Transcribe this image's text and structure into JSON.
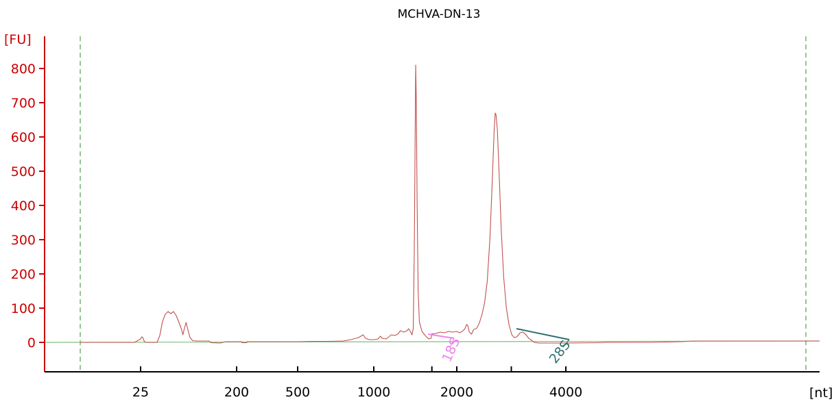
{
  "chart_data": {
    "type": "line",
    "title": "MCHVA-DN-13",
    "ylabel": "[FU]",
    "xlabel": "[nt]",
    "ylim": [
      -80,
      900
    ],
    "yticks": [
      0,
      100,
      200,
      300,
      400,
      500,
      600,
      700,
      800
    ],
    "xticks": [
      "25",
      "200",
      "500",
      "1000",
      "2000",
      "4000"
    ],
    "grid": false,
    "colors": {
      "axis_y": "#cc0000",
      "axis_x": "#000000",
      "trace": "#c0504d",
      "baseline": "#7fbf7f",
      "bounds": "#2e8b2e",
      "marker_18S": "#ee82ee",
      "marker_28S": "#2f6f6f"
    },
    "markers": [
      {
        "label": "18S"
      },
      {
        "label": "28S"
      }
    ],
    "series": [
      {
        "values": [
          [
            -24,
            0
          ],
          [
            20,
            0
          ],
          [
            25,
            10
          ],
          [
            27,
            16
          ],
          [
            29,
            14
          ],
          [
            32,
            2
          ],
          [
            35,
            0
          ],
          [
            50,
            0
          ],
          [
            55,
            0
          ],
          [
            60,
            20
          ],
          [
            65,
            62
          ],
          [
            70,
            82
          ],
          [
            75,
            90
          ],
          [
            80,
            84
          ],
          [
            85,
            90
          ],
          [
            90,
            78
          ],
          [
            95,
            58
          ],
          [
            100,
            36
          ],
          [
            102,
            22
          ],
          [
            105,
            42
          ],
          [
            108,
            58
          ],
          [
            111,
            38
          ],
          [
            115,
            14
          ],
          [
            120,
            5
          ],
          [
            128,
            4
          ],
          [
            140,
            4
          ],
          [
            150,
            4
          ],
          [
            153,
            -1
          ],
          [
            170,
            -2
          ],
          [
            180,
            2
          ],
          [
            210,
            2
          ],
          [
            225,
            2
          ],
          [
            227,
            -1
          ],
          [
            250,
            -1
          ],
          [
            252,
            2
          ],
          [
            300,
            2
          ],
          [
            400,
            2
          ],
          [
            500,
            2
          ],
          [
            600,
            3
          ],
          [
            700,
            3
          ],
          [
            800,
            4
          ],
          [
            850,
            8
          ],
          [
            900,
            14
          ],
          [
            930,
            22
          ],
          [
            945,
            12
          ],
          [
            970,
            8
          ],
          [
            1000,
            8
          ],
          [
            1050,
            10
          ],
          [
            1080,
            18
          ],
          [
            1100,
            12
          ],
          [
            1150,
            10
          ],
          [
            1180,
            16
          ],
          [
            1210,
            22
          ],
          [
            1250,
            20
          ],
          [
            1290,
            24
          ],
          [
            1320,
            34
          ],
          [
            1360,
            30
          ],
          [
            1400,
            34
          ],
          [
            1420,
            40
          ],
          [
            1440,
            32
          ],
          [
            1460,
            22
          ],
          [
            1475,
            40
          ],
          [
            1488,
            260
          ],
          [
            1498,
            600
          ],
          [
            1505,
            810
          ],
          [
            1512,
            700
          ],
          [
            1522,
            400
          ],
          [
            1535,
            150
          ],
          [
            1550,
            60
          ],
          [
            1580,
            32
          ],
          [
            1620,
            20
          ],
          [
            1660,
            10
          ],
          [
            1690,
            12
          ],
          [
            1700,
            25
          ],
          [
            1750,
            26
          ],
          [
            1800,
            30
          ],
          [
            1850,
            28
          ],
          [
            1900,
            32
          ],
          [
            1950,
            30
          ],
          [
            2000,
            32
          ],
          [
            2050,
            28
          ],
          [
            2100,
            32
          ],
          [
            2150,
            40
          ],
          [
            2180,
            52
          ],
          [
            2200,
            50
          ],
          [
            2230,
            30
          ],
          [
            2270,
            24
          ],
          [
            2310,
            38
          ],
          [
            2360,
            40
          ],
          [
            2410,
            55
          ],
          [
            2460,
            80
          ],
          [
            2510,
            115
          ],
          [
            2560,
            180
          ],
          [
            2610,
            310
          ],
          [
            2650,
            470
          ],
          [
            2685,
            620
          ],
          [
            2705,
            670
          ],
          [
            2720,
            665
          ],
          [
            2745,
            620
          ],
          [
            2775,
            500
          ],
          [
            2815,
            330
          ],
          [
            2860,
            190
          ],
          [
            2910,
            100
          ],
          [
            2960,
            50
          ],
          [
            3010,
            22
          ],
          [
            3055,
            14
          ],
          [
            3100,
            16
          ],
          [
            3160,
            28
          ],
          [
            3210,
            30
          ],
          [
            3260,
            24
          ],
          [
            3320,
            12
          ],
          [
            3380,
            5
          ],
          [
            3420,
            0
          ],
          [
            3500,
            -2
          ],
          [
            4000,
            -2
          ],
          [
            4150,
            -1
          ],
          [
            4200,
            0
          ],
          [
            4400,
            0
          ],
          [
            4550,
            2
          ],
          [
            4600,
            4
          ],
          [
            5000,
            4
          ],
          [
            5200,
            4
          ]
        ]
      }
    ]
  }
}
